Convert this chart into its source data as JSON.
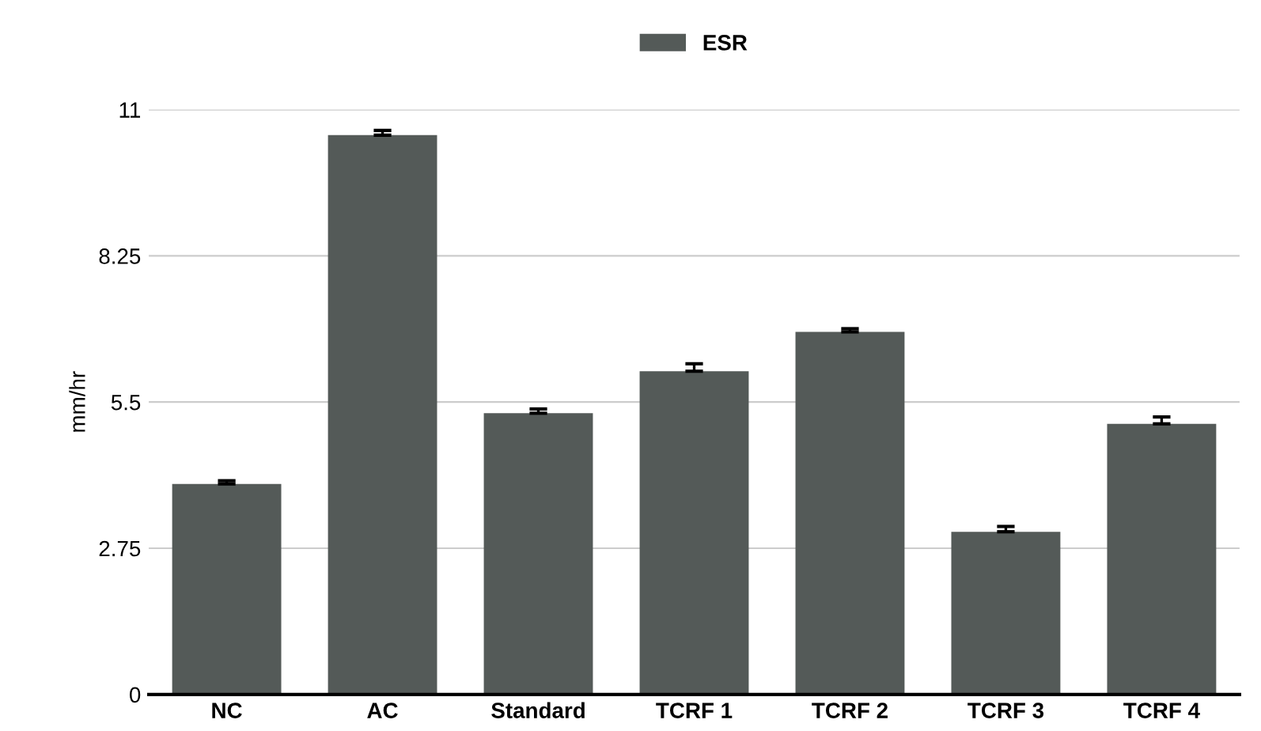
{
  "chart_data": {
    "type": "bar",
    "ylabel": "mm/hr",
    "categories": [
      "NC",
      "AC",
      "Standard",
      "TCRF 1",
      "TCRF 2",
      "TCRF 3",
      "TCRF 4"
    ],
    "series": [
      {
        "name": "ESR",
        "color": "#545a58",
        "values": [
          3.96,
          10.52,
          5.29,
          6.08,
          6.82,
          3.06,
          5.09
        ],
        "errors": [
          0.06,
          0.09,
          0.08,
          0.14,
          0.06,
          0.1,
          0.13
        ]
      }
    ],
    "ylim": [
      0,
      11
    ],
    "yticks": [
      0,
      2.75,
      5.5,
      8.25,
      11
    ],
    "grid": "y",
    "legend": "top"
  }
}
